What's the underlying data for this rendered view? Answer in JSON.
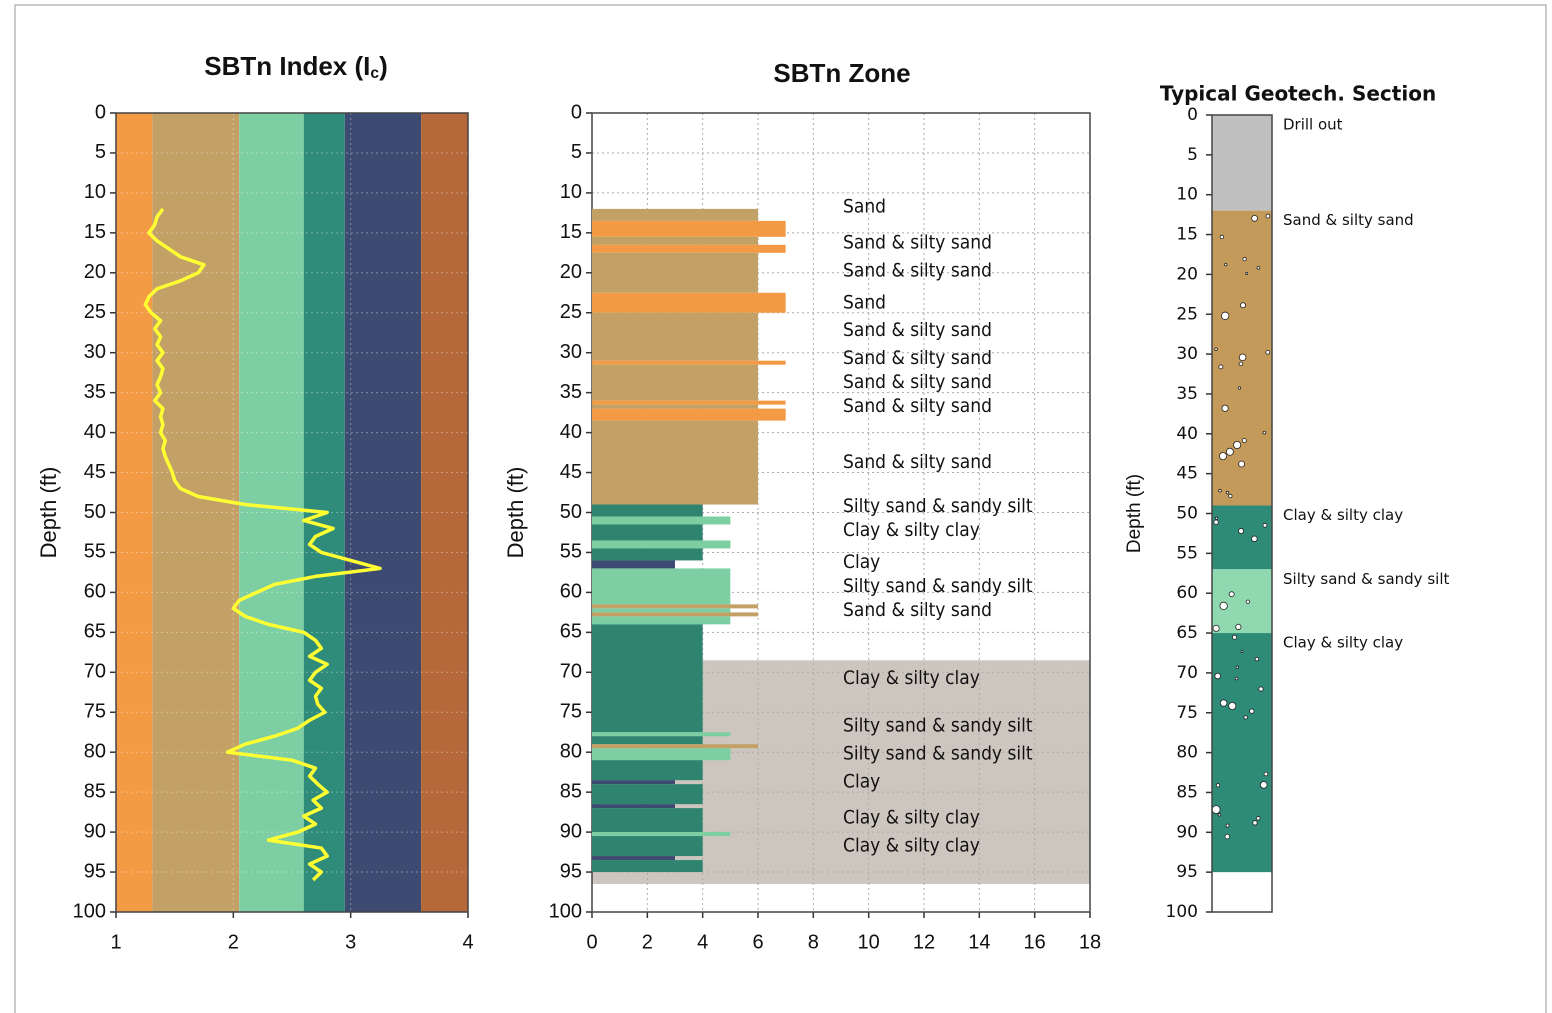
{
  "chart_data": [
    {
      "type": "line",
      "title": [
        "SBTn Index (I",
        "c",
        ")"
      ],
      "ylabel": "Depth (ft)",
      "invert_y": true,
      "xlim": [
        1,
        4
      ],
      "xticks": [
        1,
        2,
        3,
        4
      ],
      "ylim": [
        0,
        100
      ],
      "yticks": [
        0,
        5,
        10,
        15,
        20,
        25,
        30,
        35,
        40,
        45,
        50,
        55,
        60,
        65,
        70,
        75,
        80,
        85,
        90,
        95,
        100
      ],
      "grid": true,
      "bands": [
        {
          "from": 1,
          "to": 1.31,
          "color": "#f39a45"
        },
        {
          "from": 1.31,
          "to": 2.05,
          "color": "#c3a066"
        },
        {
          "from": 2.05,
          "to": 2.6,
          "color": "#7dcfa3"
        },
        {
          "from": 2.6,
          "to": 2.95,
          "color": "#2f8c7a"
        },
        {
          "from": 2.95,
          "to": 3.6,
          "color": "#3d4a72"
        },
        {
          "from": 3.6,
          "to": 4,
          "color": "#b5693a"
        }
      ],
      "depth": [
        12,
        13,
        14,
        15,
        16,
        17,
        18,
        19,
        20,
        21,
        22,
        23,
        24,
        25,
        26,
        27,
        28,
        29,
        30,
        31,
        32,
        33,
        34,
        35,
        36,
        37,
        38,
        39,
        40,
        41,
        42,
        43,
        44,
        45,
        46,
        47,
        48,
        49,
        50,
        51,
        52,
        53,
        54,
        55,
        56,
        57,
        58,
        59,
        60,
        61,
        62,
        63,
        64,
        65,
        66,
        67,
        68,
        69,
        70,
        71,
        72,
        73,
        74,
        75,
        76,
        77,
        78,
        79,
        80,
        81,
        82,
        83,
        84,
        85,
        86,
        87,
        88,
        89,
        90,
        91,
        92,
        93,
        94,
        95,
        96
      ],
      "series": [
        {
          "color": "#ffff33",
          "values": [
            1.4,
            1.35,
            1.33,
            1.28,
            1.35,
            1.45,
            1.55,
            1.75,
            1.7,
            1.55,
            1.35,
            1.28,
            1.25,
            1.3,
            1.38,
            1.33,
            1.38,
            1.35,
            1.4,
            1.35,
            1.4,
            1.38,
            1.35,
            1.38,
            1.33,
            1.4,
            1.38,
            1.4,
            1.38,
            1.42,
            1.4,
            1.42,
            1.45,
            1.48,
            1.5,
            1.55,
            1.7,
            2.1,
            2.8,
            2.6,
            2.85,
            2.7,
            2.65,
            2.75,
            3.0,
            3.25,
            2.7,
            2.35,
            2.2,
            2.05,
            2.0,
            2.1,
            2.3,
            2.6,
            2.7,
            2.75,
            2.65,
            2.8,
            2.7,
            2.65,
            2.75,
            2.7,
            2.72,
            2.78,
            2.65,
            2.55,
            2.35,
            2.1,
            1.95,
            2.5,
            2.7,
            2.65,
            2.72,
            2.8,
            2.68,
            2.75,
            2.6,
            2.7,
            2.55,
            2.3,
            2.75,
            2.8,
            2.65,
            2.75,
            2.68
          ]
        }
      ]
    },
    {
      "type": "bar",
      "title": "SBTn Zone",
      "ylabel": "Depth (ft)",
      "invert_y": true,
      "xlim": [
        0,
        18
      ],
      "xticks": [
        0,
        2,
        4,
        6,
        8,
        10,
        12,
        14,
        16,
        18
      ],
      "ylim": [
        0,
        100
      ],
      "yticks": [
        0,
        5,
        10,
        15,
        20,
        25,
        30,
        35,
        40,
        45,
        50,
        55,
        60,
        65,
        70,
        75,
        80,
        85,
        90,
        95,
        100
      ],
      "grid": true,
      "shaded": {
        "from": 68.5,
        "to": 96.5,
        "color": "#cdc6be"
      },
      "zone_colors": {
        "3": "#3d4a72",
        "4": "#2f8470",
        "5": "#7dcfa3",
        "6": "#c3a066",
        "7": "#f39a45"
      },
      "layers": [
        {
          "top": 12,
          "bottom": 13.5,
          "value": 6
        },
        {
          "top": 13.5,
          "bottom": 15.5,
          "value": 7
        },
        {
          "top": 15.5,
          "bottom": 16.5,
          "value": 6
        },
        {
          "top": 16.5,
          "bottom": 17.5,
          "value": 7
        },
        {
          "top": 17.5,
          "bottom": 22.5,
          "value": 6
        },
        {
          "top": 22.5,
          "bottom": 25,
          "value": 7
        },
        {
          "top": 25,
          "bottom": 31,
          "value": 6
        },
        {
          "top": 31,
          "bottom": 31.5,
          "value": 7
        },
        {
          "top": 31.5,
          "bottom": 36,
          "value": 6
        },
        {
          "top": 36,
          "bottom": 36.5,
          "value": 7
        },
        {
          "top": 36.5,
          "bottom": 37,
          "value": 6
        },
        {
          "top": 37,
          "bottom": 38.5,
          "value": 7
        },
        {
          "top": 38.5,
          "bottom": 49,
          "value": 6
        },
        {
          "top": 49,
          "bottom": 50.5,
          "value": 4
        },
        {
          "top": 50.5,
          "bottom": 51.5,
          "value": 5
        },
        {
          "top": 51.5,
          "bottom": 53.5,
          "value": 4
        },
        {
          "top": 53.5,
          "bottom": 54.5,
          "value": 5
        },
        {
          "top": 54.5,
          "bottom": 56,
          "value": 4
        },
        {
          "top": 56,
          "bottom": 57,
          "value": 3
        },
        {
          "top": 57,
          "bottom": 61.5,
          "value": 5
        },
        {
          "top": 61.5,
          "bottom": 62,
          "value": 6
        },
        {
          "top": 62,
          "bottom": 62.5,
          "value": 5
        },
        {
          "top": 62.5,
          "bottom": 63,
          "value": 6
        },
        {
          "top": 63,
          "bottom": 64,
          "value": 5
        },
        {
          "top": 64,
          "bottom": 77.5,
          "value": 4
        },
        {
          "top": 77.5,
          "bottom": 78,
          "value": 5
        },
        {
          "top": 78,
          "bottom": 79,
          "value": 4
        },
        {
          "top": 79,
          "bottom": 79.5,
          "value": 6
        },
        {
          "top": 79.5,
          "bottom": 81,
          "value": 5
        },
        {
          "top": 81,
          "bottom": 83.5,
          "value": 4
        },
        {
          "top": 83.5,
          "bottom": 84,
          "value": 3
        },
        {
          "top": 84,
          "bottom": 86.5,
          "value": 4
        },
        {
          "top": 86.5,
          "bottom": 87,
          "value": 3
        },
        {
          "top": 87,
          "bottom": 90,
          "value": 4
        },
        {
          "top": 90,
          "bottom": 90.5,
          "value": 5
        },
        {
          "top": 90.5,
          "bottom": 93,
          "value": 4
        },
        {
          "top": 93,
          "bottom": 93.5,
          "value": 3
        },
        {
          "top": 93.5,
          "bottom": 95,
          "value": 4
        }
      ],
      "annotations": [
        {
          "y": 12,
          "text": "Sand"
        },
        {
          "y": 16.5,
          "text": "Sand & silty sand"
        },
        {
          "y": 20,
          "text": "Sand & silty sand"
        },
        {
          "y": 24,
          "text": "Sand"
        },
        {
          "y": 27.5,
          "text": "Sand & silty sand"
        },
        {
          "y": 31,
          "text": "Sand & silty sand"
        },
        {
          "y": 34,
          "text": "Sand & silty sand"
        },
        {
          "y": 37,
          "text": "Sand & silty sand"
        },
        {
          "y": 44,
          "text": "Sand & silty sand"
        },
        {
          "y": 49.5,
          "text": "Silty sand & sandy silt"
        },
        {
          "y": 52.5,
          "text": "Clay & silty clay"
        },
        {
          "y": 56.5,
          "text": "Clay"
        },
        {
          "y": 59.5,
          "text": "Silty sand & sandy silt"
        },
        {
          "y": 62.5,
          "text": "Sand & silty sand"
        },
        {
          "y": 71,
          "text": "Clay & silty clay"
        },
        {
          "y": 77,
          "text": "Silty sand & sandy silt"
        },
        {
          "y": 80.5,
          "text": "Silty sand & sandy silt"
        },
        {
          "y": 84,
          "text": "Clay"
        },
        {
          "y": 88.5,
          "text": "Clay & silty clay"
        },
        {
          "y": 92,
          "text": "Clay & silty clay"
        }
      ]
    },
    {
      "type": "strata",
      "title": "Typical Geotech. Section",
      "ylabel": "Depth (ft)",
      "invert_y": true,
      "ylim": [
        0,
        100
      ],
      "yticks": [
        0,
        5,
        10,
        15,
        20,
        25,
        30,
        35,
        40,
        45,
        50,
        55,
        60,
        65,
        70,
        75,
        80,
        85,
        90,
        95,
        100
      ],
      "strata": [
        {
          "top": 0,
          "bottom": 12,
          "color": "#c0c0c0",
          "label": "Drill out"
        },
        {
          "top": 12,
          "bottom": 49,
          "color": "#c49a5a",
          "label": "Sand & silty sand"
        },
        {
          "top": 49,
          "bottom": 57,
          "color": "#2e8b78",
          "label": "Clay & silty clay"
        },
        {
          "top": 57,
          "bottom": 65,
          "color": "#8fd8b0",
          "label": "Silty sand & sandy silt"
        },
        {
          "top": 65,
          "bottom": 95,
          "color": "#2e8b78",
          "label": "Clay & silty clay"
        }
      ]
    }
  ]
}
